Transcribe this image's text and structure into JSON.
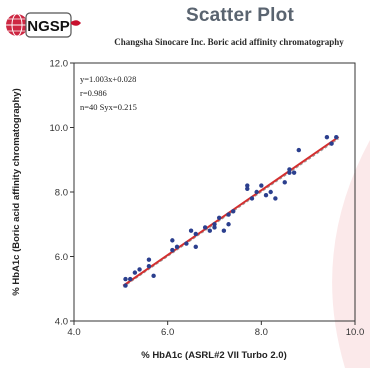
{
  "logo": {
    "text": "NGSP"
  },
  "title": "Scatter Plot",
  "subtitle": "Changsha Sinocare Inc. Boric acid affinity chromatography",
  "colors": {
    "fit_line": "#d32f2f",
    "points": "#2b3f8e",
    "identity_line": "#9a9a9a",
    "logo_red": "#c8102e",
    "title": "#5a6470"
  },
  "chart_data": {
    "type": "scatter",
    "title": "Scatter Plot",
    "subtitle": "Changsha Sinocare Inc. Boric acid affinity chromatography",
    "xlabel": "% HbA1c (ASRL#2 VII Turbo 2.0)",
    "ylabel": "% HbA1c (Boric acid affinity chromatography)",
    "xlim": [
      4.0,
      10.0
    ],
    "ylim": [
      4.0,
      12.0
    ],
    "x_ticks": [
      "4.0",
      "6.0",
      "8.0",
      "10.0"
    ],
    "y_ticks": [
      "4.0",
      "6.0",
      "8.0",
      "10.0",
      "12.0"
    ],
    "grid": false,
    "annotations": [
      "y=1.003x+0.028",
      "r=0.986",
      "n=40 Syx=0.215"
    ],
    "fit_line": {
      "slope": 1.003,
      "intercept": 0.028
    },
    "identity_line": true,
    "x": [
      5.1,
      5.1,
      5.2,
      5.3,
      5.4,
      5.6,
      5.6,
      5.7,
      6.1,
      6.1,
      6.2,
      6.4,
      6.5,
      6.6,
      6.6,
      6.8,
      6.9,
      7.0,
      7.0,
      7.1,
      7.2,
      7.3,
      7.3,
      7.4,
      7.7,
      7.7,
      7.8,
      7.9,
      8.0,
      8.1,
      8.2,
      8.3,
      8.5,
      8.6,
      8.6,
      8.7,
      8.8,
      9.4,
      9.5,
      9.6
    ],
    "y": [
      5.1,
      5.3,
      5.3,
      5.5,
      5.6,
      5.7,
      5.9,
      5.4,
      6.2,
      6.5,
      6.3,
      6.4,
      6.8,
      6.3,
      6.7,
      6.9,
      6.8,
      7.0,
      6.9,
      7.2,
      6.8,
      7.0,
      7.3,
      7.4,
      8.2,
      8.1,
      7.8,
      8.0,
      8.2,
      7.9,
      8.0,
      7.8,
      8.3,
      8.6,
      8.7,
      8.6,
      9.3,
      9.7,
      9.5,
      9.7
    ]
  }
}
